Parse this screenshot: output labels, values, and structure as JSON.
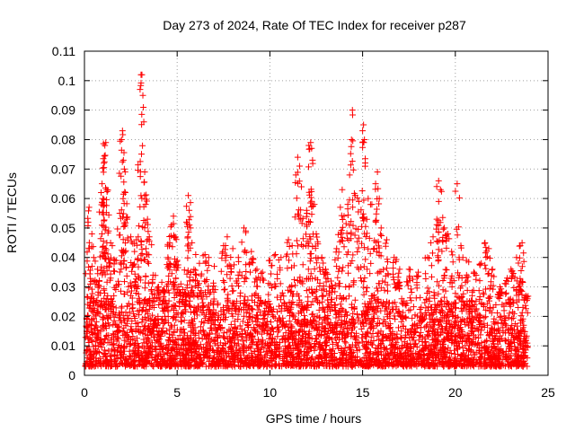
{
  "chart_data": {
    "type": "scatter",
    "title": "Day 273 of 2024, Rate Of TEC Index for receiver p287",
    "xlabel": "GPS time / hours",
    "ylabel": "ROTI / TECUs",
    "xlim": [
      0,
      25
    ],
    "ylim": [
      0,
      0.11
    ],
    "xticks": [
      0,
      5,
      10,
      15,
      20,
      25
    ],
    "xtick_labels": [
      "0",
      "5",
      "10",
      "15",
      "20",
      "25"
    ],
    "yticks": [
      0,
      0.01,
      0.02,
      0.03,
      0.04,
      0.05,
      0.06,
      0.07,
      0.08,
      0.09,
      0.1,
      0.11
    ],
    "ytick_labels": [
      "0",
      "0.01",
      "0.02",
      "0.03",
      "0.04",
      "0.05",
      "0.06",
      "0.07",
      "0.08",
      "0.09",
      "0.1",
      "0.11"
    ],
    "grid": true,
    "marker": "+",
    "marker_color": "#ff0000",
    "series": [
      {
        "name": "ROTI",
        "description_baseline": [
          0.003,
          0.025
        ],
        "points": [
          [
            0.2,
            0.052
          ],
          [
            0.25,
            0.057
          ],
          [
            0.4,
            0.048
          ],
          [
            0.5,
            0.04
          ],
          [
            0.7,
            0.036
          ],
          [
            0.9,
            0.062
          ],
          [
            0.95,
            0.065
          ],
          [
            1.0,
            0.06
          ],
          [
            1.05,
            0.072
          ],
          [
            1.1,
            0.078
          ],
          [
            1.15,
            0.079
          ],
          [
            1.2,
            0.063
          ],
          [
            1.3,
            0.049
          ],
          [
            1.5,
            0.044
          ],
          [
            1.7,
            0.039
          ],
          [
            1.9,
            0.055
          ],
          [
            2.0,
            0.08
          ],
          [
            2.05,
            0.083
          ],
          [
            2.1,
            0.073
          ],
          [
            2.15,
            0.07
          ],
          [
            2.2,
            0.062
          ],
          [
            2.3,
            0.053
          ],
          [
            2.5,
            0.047
          ],
          [
            2.7,
            0.042
          ],
          [
            2.8,
            0.046
          ],
          [
            2.9,
            0.047
          ],
          [
            3.0,
            0.097
          ],
          [
            3.05,
            0.102
          ],
          [
            3.1,
            0.102
          ],
          [
            3.15,
            0.095
          ],
          [
            3.2,
            0.086
          ],
          [
            3.25,
            0.069
          ],
          [
            3.3,
            0.058
          ],
          [
            3.4,
            0.053
          ],
          [
            3.5,
            0.047
          ],
          [
            3.7,
            0.034
          ],
          [
            4.0,
            0.03
          ],
          [
            4.3,
            0.029
          ],
          [
            4.5,
            0.04
          ],
          [
            4.6,
            0.045
          ],
          [
            4.7,
            0.051
          ],
          [
            4.8,
            0.054
          ],
          [
            4.9,
            0.047
          ],
          [
            5.0,
            0.039
          ],
          [
            5.2,
            0.031
          ],
          [
            5.4,
            0.028
          ],
          [
            5.5,
            0.052
          ],
          [
            5.6,
            0.061
          ],
          [
            5.65,
            0.056
          ],
          [
            5.8,
            0.045
          ],
          [
            6.0,
            0.041
          ],
          [
            6.2,
            0.038
          ],
          [
            6.5,
            0.041
          ],
          [
            6.7,
            0.04
          ],
          [
            7.0,
            0.037
          ],
          [
            7.5,
            0.044
          ],
          [
            7.7,
            0.047
          ],
          [
            8.0,
            0.043
          ],
          [
            8.3,
            0.04
          ],
          [
            8.6,
            0.05
          ],
          [
            8.7,
            0.049
          ],
          [
            9.0,
            0.042
          ],
          [
            9.3,
            0.036
          ],
          [
            9.6,
            0.035
          ],
          [
            10.0,
            0.039
          ],
          [
            10.3,
            0.041
          ],
          [
            10.6,
            0.04
          ],
          [
            11.0,
            0.046
          ],
          [
            11.2,
            0.044
          ],
          [
            11.4,
            0.068
          ],
          [
            11.5,
            0.074
          ],
          [
            11.6,
            0.071
          ],
          [
            11.7,
            0.064
          ],
          [
            12.0,
            0.055
          ],
          [
            12.1,
            0.078
          ],
          [
            12.2,
            0.079
          ],
          [
            12.25,
            0.077
          ],
          [
            12.3,
            0.073
          ],
          [
            12.4,
            0.058
          ],
          [
            12.5,
            0.048
          ],
          [
            12.8,
            0.04
          ],
          [
            13.0,
            0.036
          ],
          [
            13.3,
            0.032
          ],
          [
            13.6,
            0.043
          ],
          [
            13.8,
            0.057
          ],
          [
            13.9,
            0.063
          ],
          [
            14.0,
            0.054
          ],
          [
            14.2,
            0.058
          ],
          [
            14.3,
            0.068
          ],
          [
            14.4,
            0.08
          ],
          [
            14.45,
            0.09
          ],
          [
            14.6,
            0.061
          ],
          [
            14.8,
            0.059
          ],
          [
            15.0,
            0.083
          ],
          [
            15.05,
            0.085
          ],
          [
            15.1,
            0.08
          ],
          [
            15.3,
            0.06
          ],
          [
            15.5,
            0.058
          ],
          [
            15.7,
            0.065
          ],
          [
            15.8,
            0.069
          ],
          [
            15.9,
            0.06
          ],
          [
            16.0,
            0.05
          ],
          [
            16.3,
            0.046
          ],
          [
            16.7,
            0.04
          ],
          [
            17.0,
            0.036
          ],
          [
            17.5,
            0.036
          ],
          [
            18.0,
            0.035
          ],
          [
            18.5,
            0.04
          ],
          [
            18.8,
            0.047
          ],
          [
            19.0,
            0.053
          ],
          [
            19.1,
            0.066
          ],
          [
            19.2,
            0.063
          ],
          [
            19.4,
            0.05
          ],
          [
            19.6,
            0.048
          ],
          [
            19.8,
            0.042
          ],
          [
            20.1,
            0.065
          ],
          [
            20.3,
            0.044
          ],
          [
            20.6,
            0.039
          ],
          [
            21.0,
            0.035
          ],
          [
            21.4,
            0.038
          ],
          [
            21.6,
            0.045
          ],
          [
            21.8,
            0.043
          ],
          [
            22.0,
            0.036
          ],
          [
            22.4,
            0.03
          ],
          [
            22.8,
            0.033
          ],
          [
            23.0,
            0.036
          ],
          [
            23.3,
            0.04
          ],
          [
            23.5,
            0.044
          ],
          [
            23.6,
            0.045
          ],
          [
            23.8,
            0.027
          ]
        ]
      }
    ]
  }
}
